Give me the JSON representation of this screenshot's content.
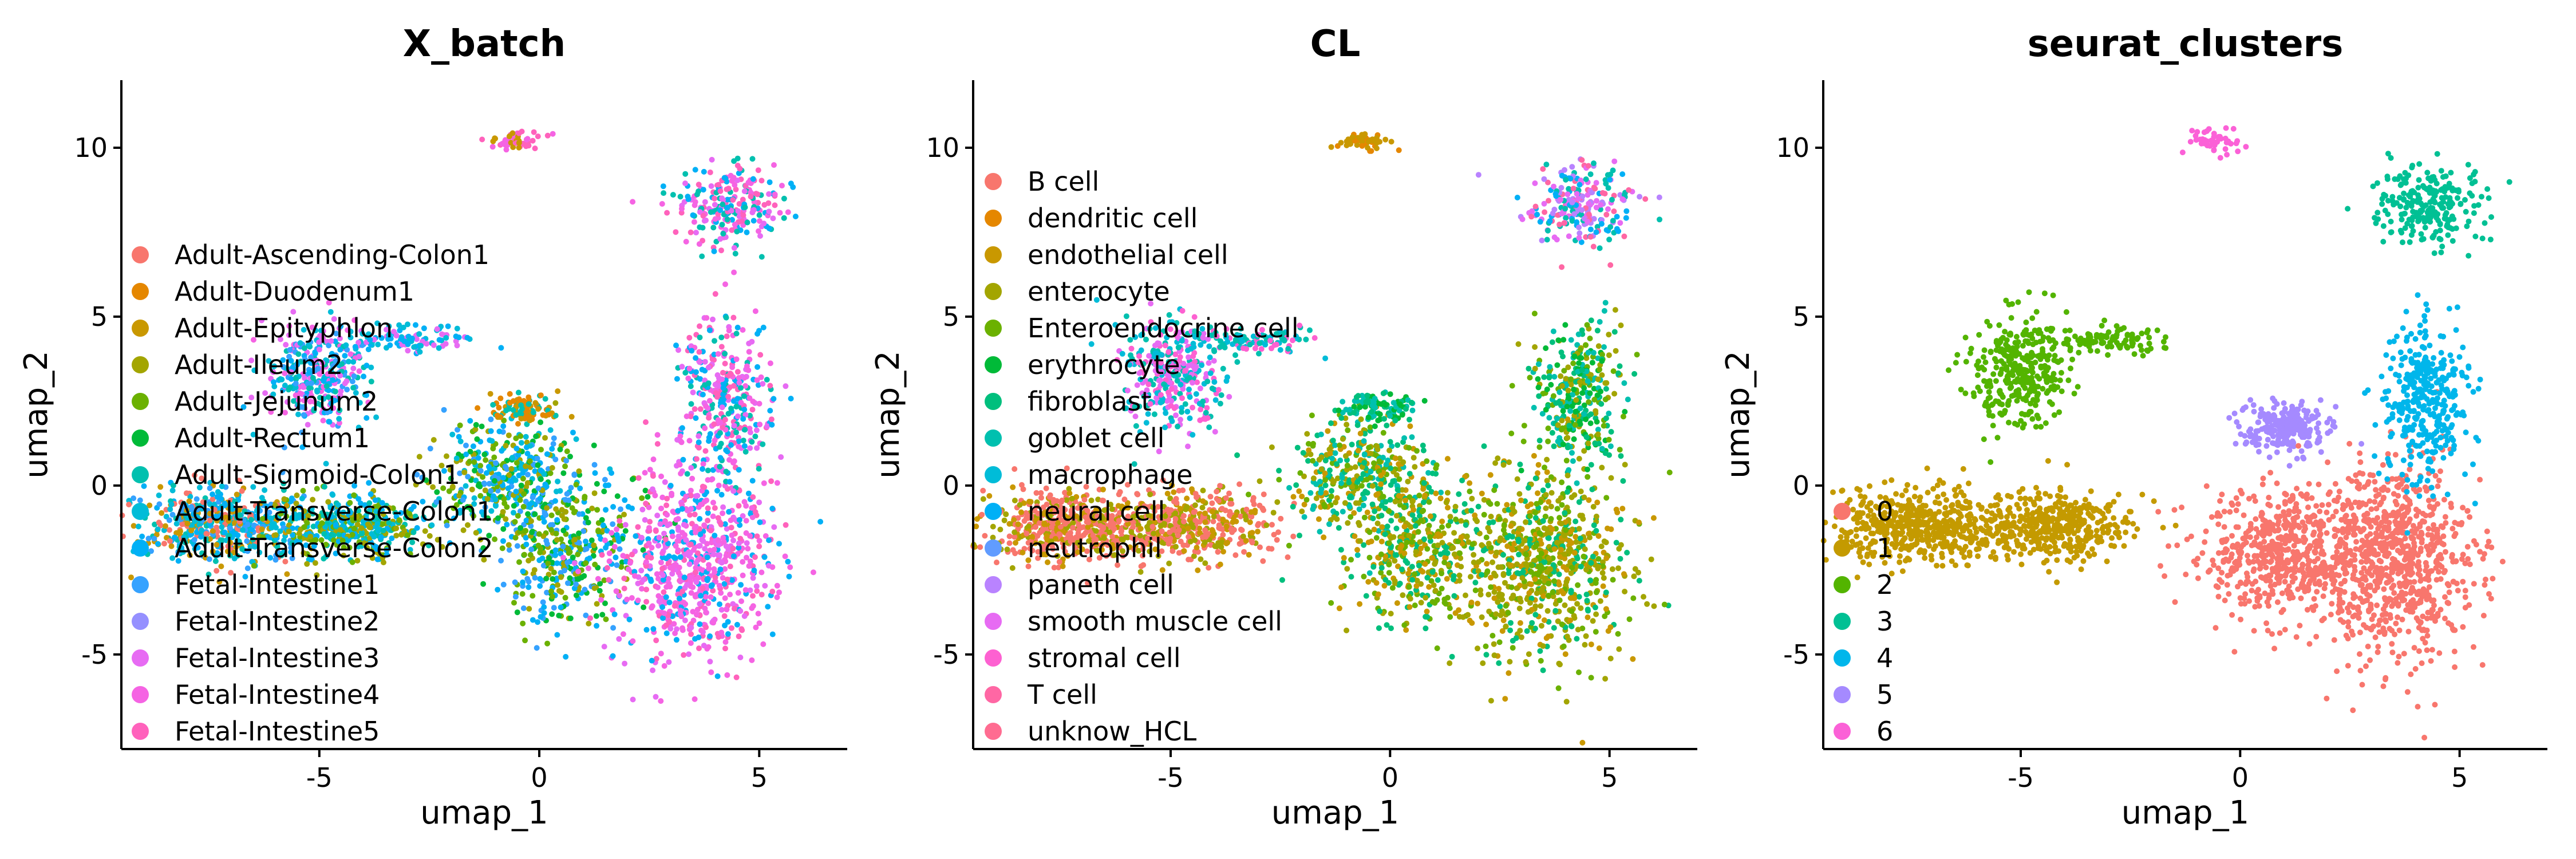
{
  "chart_data": [
    {
      "type": "scatter",
      "title": "X_batch",
      "xlabel": "umap_1",
      "ylabel": "umap_2",
      "xlim": [
        -9.5,
        7.0
      ],
      "ylim": [
        -7.8,
        12.0
      ],
      "xticks": [
        {
          "value": -5,
          "label": "-5"
        },
        {
          "value": 0,
          "label": "0"
        },
        {
          "value": 5,
          "label": "5"
        }
      ],
      "yticks": [
        {
          "value": -5,
          "label": "-5"
        },
        {
          "value": 0,
          "label": "0"
        },
        {
          "value": 5,
          "label": "5"
        },
        {
          "value": 10,
          "label": "10"
        }
      ],
      "legend": "left",
      "series": [
        {
          "name": "Adult-Ascending-Colon1",
          "color": "#F8766D"
        },
        {
          "name": "Adult-Duodenum1",
          "color": "#E58700"
        },
        {
          "name": "Adult-Epityphlon",
          "color": "#C99800"
        },
        {
          "name": "Adult-Ileum2",
          "color": "#A3A500"
        },
        {
          "name": "Adult-Jejunum2",
          "color": "#6BB100"
        },
        {
          "name": "Adult-Rectum1",
          "color": "#00BA38"
        },
        {
          "name": "Adult-Sigmoid-Colon1",
          "color": "#00C0AF"
        },
        {
          "name": "Adult-Transverse-Colon1",
          "color": "#00BCD8"
        },
        {
          "name": "Adult-Transverse-Colon2",
          "color": "#00B0F6"
        },
        {
          "name": "Fetal-Intestine1",
          "color": "#35A2FF"
        },
        {
          "name": "Fetal-Intestine2",
          "color": "#9590FF"
        },
        {
          "name": "Fetal-Intestine3",
          "color": "#E76BF3"
        },
        {
          "name": "Fetal-Intestine4",
          "color": "#F564E3"
        },
        {
          "name": "Fetal-Intestine5",
          "color": "#FF62BC"
        }
      ],
      "clusters": [
        {
          "cx": -7.3,
          "cy": -1.2,
          "rx": 1.8,
          "ry": 1.0,
          "w": 1.5,
          "colors": [
            6,
            7,
            8,
            9,
            0,
            2
          ]
        },
        {
          "cx": -4.3,
          "cy": -1.2,
          "rx": 1.6,
          "ry": 0.9,
          "w": 1.2,
          "colors": [
            6,
            7,
            8,
            3,
            4
          ]
        },
        {
          "cx": -5.0,
          "cy": 3.3,
          "rx": 1.0,
          "ry": 1.5,
          "w": 1.0,
          "colors": [
            6,
            7,
            8,
            9,
            11,
            12
          ]
        },
        {
          "cx": -3.0,
          "cy": 4.3,
          "rx": 1.2,
          "ry": 0.35,
          "w": 0.3,
          "colors": [
            7,
            8,
            11
          ]
        },
        {
          "cx": -0.7,
          "cy": 0.3,
          "rx": 1.5,
          "ry": 1.5,
          "w": 1.1,
          "colors": [
            8,
            9,
            7,
            3,
            4,
            5
          ]
        },
        {
          "cx": 0.6,
          "cy": -2.0,
          "rx": 1.4,
          "ry": 2.0,
          "w": 1.1,
          "colors": [
            8,
            9,
            4,
            5,
            3
          ]
        },
        {
          "cx": -0.3,
          "cy": 2.3,
          "rx": 0.7,
          "ry": 0.4,
          "w": 0.3,
          "colors": [
            1,
            2,
            6
          ]
        },
        {
          "cx": 3.5,
          "cy": -2.3,
          "rx": 1.7,
          "ry": 2.6,
          "w": 2.2,
          "colors": [
            12,
            13,
            11,
            12,
            8
          ]
        },
        {
          "cx": 4.2,
          "cy": 2.5,
          "rx": 0.9,
          "ry": 2.2,
          "w": 1.0,
          "colors": [
            12,
            13,
            11,
            8,
            6
          ]
        },
        {
          "cx": 4.3,
          "cy": 8.3,
          "rx": 1.1,
          "ry": 1.1,
          "w": 0.7,
          "colors": [
            12,
            13,
            11,
            6,
            8
          ]
        },
        {
          "cx": -0.6,
          "cy": 10.2,
          "rx": 0.6,
          "ry": 0.3,
          "w": 0.15,
          "colors": [
            12,
            13,
            2
          ]
        }
      ]
    },
    {
      "type": "scatter",
      "title": "CL",
      "xlabel": "umap_1",
      "ylabel": "umap_2",
      "xlim": [
        -9.5,
        7.0
      ],
      "ylim": [
        -7.8,
        12.0
      ],
      "xticks": [
        {
          "value": -5,
          "label": "-5"
        },
        {
          "value": 0,
          "label": "0"
        },
        {
          "value": 5,
          "label": "5"
        }
      ],
      "yticks": [
        {
          "value": -5,
          "label": "-5"
        },
        {
          "value": 0,
          "label": "0"
        },
        {
          "value": 5,
          "label": "5"
        },
        {
          "value": 10,
          "label": "10"
        }
      ],
      "legend": "left",
      "series": [
        {
          "name": "B cell",
          "color": "#F8766D"
        },
        {
          "name": "dendritic cell",
          "color": "#E58700"
        },
        {
          "name": "endothelial cell",
          "color": "#C99800"
        },
        {
          "name": "enterocyte",
          "color": "#A3A500"
        },
        {
          "name": "Enteroendocrine cell",
          "color": "#6BB100"
        },
        {
          "name": "erythrocyte",
          "color": "#00BA38"
        },
        {
          "name": "fibroblast",
          "color": "#00BF7D"
        },
        {
          "name": "goblet cell",
          "color": "#00C0AF"
        },
        {
          "name": "macrophage",
          "color": "#00BCD8"
        },
        {
          "name": "neural cell",
          "color": "#00B0F6"
        },
        {
          "name": "neutrophil",
          "color": "#619CFF"
        },
        {
          "name": "paneth cell",
          "color": "#B983FF"
        },
        {
          "name": "smooth muscle cell",
          "color": "#E76BF3"
        },
        {
          "name": "stromal cell",
          "color": "#FD61D1"
        },
        {
          "name": "T cell",
          "color": "#FF67A4"
        },
        {
          "name": "unknow_HCL",
          "color": "#FF6C91"
        }
      ],
      "clusters": [
        {
          "cx": -7.3,
          "cy": -1.2,
          "rx": 1.8,
          "ry": 1.0,
          "w": 1.5,
          "colors": [
            0,
            0,
            0,
            2,
            3
          ]
        },
        {
          "cx": -4.3,
          "cy": -1.2,
          "rx": 1.6,
          "ry": 0.9,
          "w": 1.2,
          "colors": [
            0,
            0,
            2,
            3
          ]
        },
        {
          "cx": -5.0,
          "cy": 3.3,
          "rx": 1.0,
          "ry": 1.5,
          "w": 1.0,
          "colors": [
            13,
            12,
            7,
            8
          ]
        },
        {
          "cx": -3.0,
          "cy": 4.3,
          "rx": 1.2,
          "ry": 0.35,
          "w": 0.3,
          "colors": [
            8,
            7,
            13
          ]
        },
        {
          "cx": -0.7,
          "cy": 0.3,
          "rx": 1.5,
          "ry": 1.5,
          "w": 1.1,
          "colors": [
            7,
            6,
            2,
            3,
            4
          ]
        },
        {
          "cx": 0.6,
          "cy": -2.0,
          "rx": 1.4,
          "ry": 2.0,
          "w": 1.1,
          "colors": [
            3,
            2,
            4,
            6
          ]
        },
        {
          "cx": -0.3,
          "cy": 2.3,
          "rx": 0.7,
          "ry": 0.4,
          "w": 0.3,
          "colors": [
            7,
            6,
            5
          ]
        },
        {
          "cx": 3.5,
          "cy": -2.3,
          "rx": 1.7,
          "ry": 2.6,
          "w": 2.2,
          "colors": [
            3,
            2,
            4,
            3,
            6
          ]
        },
        {
          "cx": 4.2,
          "cy": 2.5,
          "rx": 0.9,
          "ry": 2.2,
          "w": 1.0,
          "colors": [
            5,
            4,
            3,
            6,
            7
          ]
        },
        {
          "cx": 4.3,
          "cy": 8.3,
          "rx": 1.1,
          "ry": 1.1,
          "w": 0.7,
          "colors": [
            12,
            11,
            9,
            7,
            14
          ]
        },
        {
          "cx": -0.6,
          "cy": 10.2,
          "rx": 0.6,
          "ry": 0.3,
          "w": 0.15,
          "colors": [
            1,
            2
          ]
        }
      ]
    },
    {
      "type": "scatter",
      "title": "seurat_clusters",
      "xlabel": "umap_1",
      "ylabel": "umap_2",
      "xlim": [
        -9.5,
        7.0
      ],
      "ylim": [
        -7.8,
        12.0
      ],
      "xticks": [
        {
          "value": -5,
          "label": "-5"
        },
        {
          "value": 0,
          "label": "0"
        },
        {
          "value": 5,
          "label": "5"
        }
      ],
      "yticks": [
        {
          "value": -5,
          "label": "-5"
        },
        {
          "value": 0,
          "label": "0"
        },
        {
          "value": 5,
          "label": "5"
        },
        {
          "value": 10,
          "label": "10"
        }
      ],
      "legend": "left",
      "series": [
        {
          "name": "0",
          "color": "#F8766D"
        },
        {
          "name": "1",
          "color": "#C49A00"
        },
        {
          "name": "2",
          "color": "#53B400"
        },
        {
          "name": "3",
          "color": "#00C094"
        },
        {
          "name": "4",
          "color": "#00B6EB"
        },
        {
          "name": "5",
          "color": "#A58AFF"
        },
        {
          "name": "6",
          "color": "#FB61D7"
        }
      ],
      "clusters": [
        {
          "cx": -7.3,
          "cy": -1.2,
          "rx": 1.8,
          "ry": 1.0,
          "w": 1.5,
          "colors": [
            1
          ]
        },
        {
          "cx": -4.3,
          "cy": -1.2,
          "rx": 1.6,
          "ry": 0.9,
          "w": 1.2,
          "colors": [
            1
          ]
        },
        {
          "cx": -5.0,
          "cy": 3.3,
          "rx": 1.0,
          "ry": 1.5,
          "w": 1.0,
          "colors": [
            2
          ]
        },
        {
          "cx": -3.0,
          "cy": 4.3,
          "rx": 1.2,
          "ry": 0.35,
          "w": 0.3,
          "colors": [
            2
          ]
        },
        {
          "cx": 1.0,
          "cy": 1.7,
          "rx": 1.0,
          "ry": 0.7,
          "w": 0.7,
          "colors": [
            5
          ]
        },
        {
          "cx": 0.9,
          "cy": -2.0,
          "rx": 1.6,
          "ry": 1.8,
          "w": 1.6,
          "colors": [
            0
          ]
        },
        {
          "cx": 3.5,
          "cy": -2.3,
          "rx": 1.7,
          "ry": 2.6,
          "w": 2.4,
          "colors": [
            0
          ]
        },
        {
          "cx": 4.2,
          "cy": 2.5,
          "rx": 0.9,
          "ry": 2.2,
          "w": 1.0,
          "colors": [
            4
          ]
        },
        {
          "cx": 4.3,
          "cy": 8.3,
          "rx": 1.1,
          "ry": 1.1,
          "w": 0.7,
          "colors": [
            3
          ]
        },
        {
          "cx": -0.6,
          "cy": 10.2,
          "rx": 0.6,
          "ry": 0.3,
          "w": 0.15,
          "colors": [
            6
          ]
        }
      ]
    }
  ]
}
